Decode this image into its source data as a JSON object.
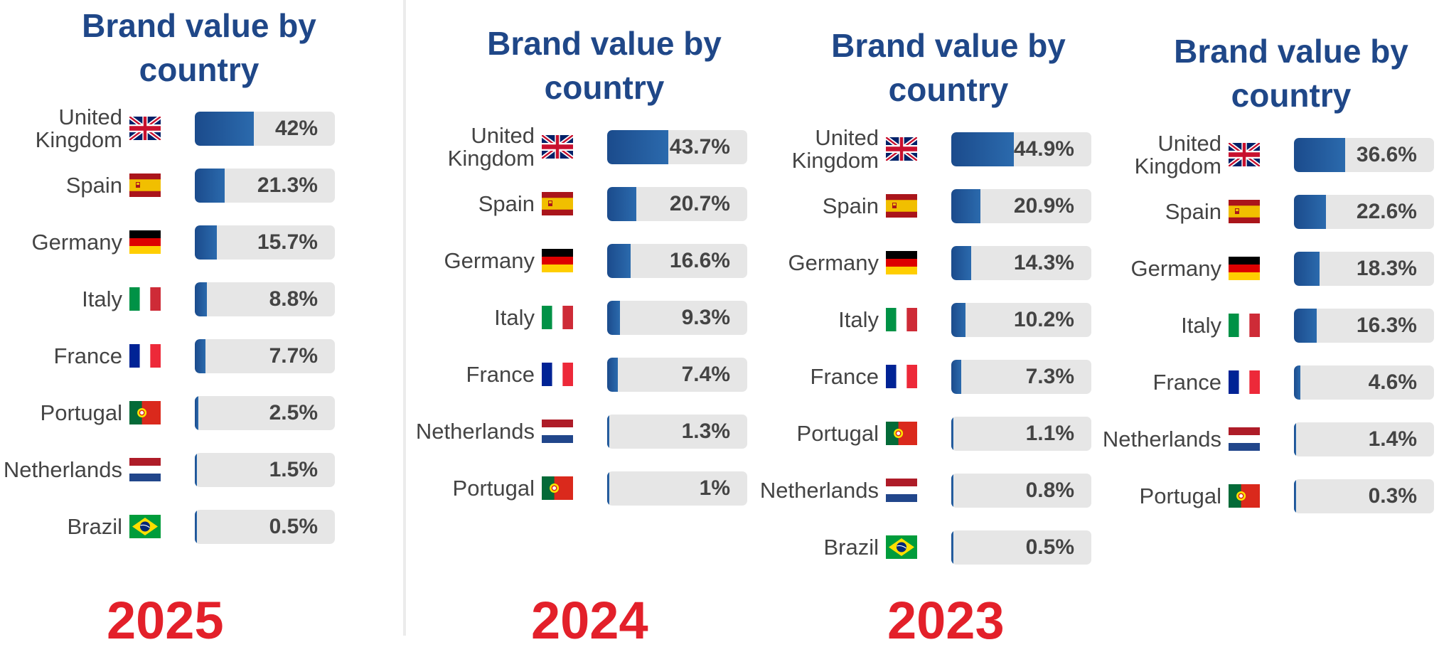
{
  "chart_data": [
    {
      "type": "bar",
      "title": "Brand value by country",
      "categories": [
        "United Kingdom",
        "Spain",
        "Germany",
        "Italy",
        "France",
        "Portugal",
        "Netherlands",
        "Brazil"
      ],
      "values": [
        42,
        21.3,
        15.7,
        8.8,
        7.7,
        2.5,
        1.5,
        0.5
      ],
      "value_labels": [
        "42%",
        "21.3%",
        "15.7%",
        "8.8%",
        "7.7%",
        "2.5%",
        "1.5%",
        "0.5%"
      ],
      "flags": [
        "uk-flag-icon",
        "spain-flag-icon",
        "germany-flag-icon",
        "italy-flag-icon",
        "france-flag-icon",
        "portugal-flag-icon",
        "netherlands-flag-icon",
        "brazil-flag-icon"
      ],
      "xlim": [
        0,
        100
      ],
      "unit": "%",
      "orientation": "horizontal"
    },
    {
      "type": "bar",
      "title": "Brand value by country",
      "categories": [
        "United Kingdom",
        "Spain",
        "Germany",
        "Italy",
        "France",
        "Netherlands",
        "Portugal"
      ],
      "values": [
        43.7,
        20.7,
        16.6,
        9.3,
        7.4,
        1.3,
        1
      ],
      "value_labels": [
        "43.7%",
        "20.7%",
        "16.6%",
        "9.3%",
        "7.4%",
        "1.3%",
        "1%"
      ],
      "flags": [
        "uk-flag-icon",
        "spain-flag-icon",
        "germany-flag-icon",
        "italy-flag-icon",
        "france-flag-icon",
        "netherlands-flag-icon",
        "portugal-flag-icon"
      ],
      "xlim": [
        0,
        100
      ],
      "unit": "%",
      "orientation": "horizontal"
    },
    {
      "type": "bar",
      "title": "Brand value by country",
      "categories": [
        "United Kingdom",
        "Spain",
        "Germany",
        "Italy",
        "France",
        "Portugal",
        "Netherlands",
        "Brazil"
      ],
      "values": [
        44.9,
        20.9,
        14.3,
        10.2,
        7.3,
        1.1,
        0.8,
        0.5
      ],
      "value_labels": [
        "44.9%",
        "20.9%",
        "14.3%",
        "10.2%",
        "7.3%",
        "1.1%",
        "0.8%",
        "0.5%"
      ],
      "flags": [
        "uk-flag-icon",
        "spain-flag-icon",
        "germany-flag-icon",
        "italy-flag-icon",
        "france-flag-icon",
        "portugal-flag-icon",
        "netherlands-flag-icon",
        "brazil-flag-icon"
      ],
      "xlim": [
        0,
        100
      ],
      "unit": "%",
      "orientation": "horizontal"
    },
    {
      "type": "bar",
      "title": "Brand value by country",
      "categories": [
        "United Kingdom",
        "Spain",
        "Germany",
        "Italy",
        "France",
        "Netherlands",
        "Portugal"
      ],
      "values": [
        36.6,
        22.6,
        18.3,
        16.3,
        4.6,
        1.4,
        0.3
      ],
      "value_labels": [
        "36.6%",
        "22.6%",
        "18.3%",
        "16.3%",
        "4.6%",
        "1.4%",
        "0.3%"
      ],
      "flags": [
        "uk-flag-icon",
        "spain-flag-icon",
        "germany-flag-icon",
        "italy-flag-icon",
        "france-flag-icon",
        "netherlands-flag-icon",
        "portugal-flag-icon"
      ],
      "xlim": [
        0,
        100
      ],
      "unit": "%",
      "orientation": "horizontal"
    }
  ],
  "year_labels": [
    "2025",
    "2024",
    "2023"
  ],
  "colors": {
    "title": "#1f4788",
    "bar_fill_start": "#1b4b8c",
    "bar_fill_end": "#2b6aad",
    "bar_track": "#e6e6e6",
    "year": "#e3202a",
    "label": "#444444"
  }
}
